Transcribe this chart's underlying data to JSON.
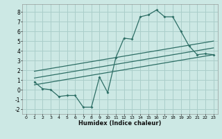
{
  "xlabel": "Humidex (Indice chaleur)",
  "xlim": [
    -0.5,
    23.5
  ],
  "ylim": [
    -2.5,
    8.8
  ],
  "xticks": [
    0,
    1,
    2,
    3,
    4,
    5,
    6,
    7,
    8,
    9,
    10,
    11,
    12,
    13,
    14,
    15,
    16,
    17,
    18,
    19,
    20,
    21,
    22,
    23
  ],
  "yticks": [
    -2,
    -1,
    0,
    1,
    2,
    3,
    4,
    5,
    6,
    7,
    8
  ],
  "background_color": "#cce8e4",
  "grid_color": "#aaceca",
  "line_color": "#2d6e65",
  "curve_x": [
    1,
    2,
    3,
    4,
    5,
    6,
    7,
    8,
    9,
    10,
    11,
    12,
    13,
    14,
    15,
    16,
    17,
    18,
    19,
    20,
    21,
    22,
    23
  ],
  "curve_y": [
    0.8,
    0.1,
    0.0,
    -0.7,
    -0.6,
    -0.6,
    -1.8,
    -1.8,
    1.3,
    -0.3,
    3.3,
    5.3,
    5.2,
    7.5,
    7.7,
    8.2,
    7.5,
    7.5,
    6.0,
    4.5,
    3.6,
    3.7,
    3.6
  ],
  "line1_x": [
    1,
    23
  ],
  "line1_y": [
    0.5,
    3.6
  ],
  "line2_x": [
    1,
    23
  ],
  "line2_y": [
    1.2,
    4.3
  ],
  "line3_x": [
    1,
    23
  ],
  "line3_y": [
    1.9,
    5.0
  ]
}
